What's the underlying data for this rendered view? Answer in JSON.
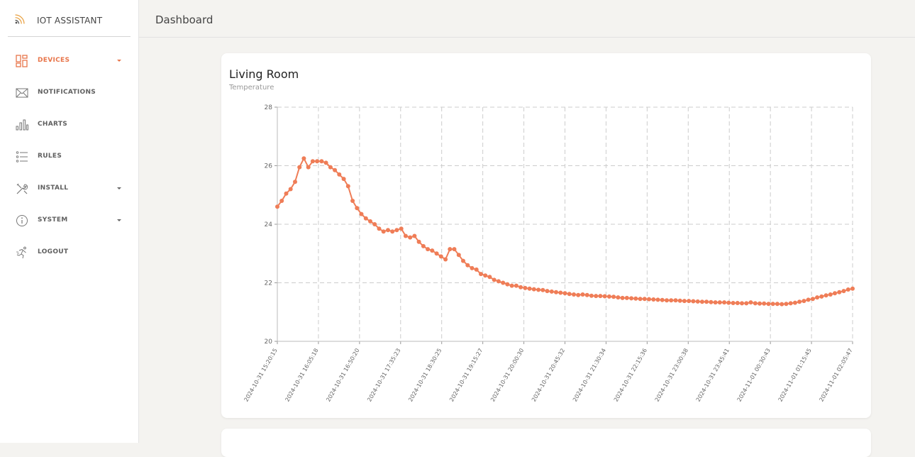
{
  "app": {
    "name": "IOT ASSISTANT"
  },
  "sidebar": {
    "items": [
      {
        "label": "DEVICES",
        "icon": "devices-icon",
        "active": true,
        "has_caret": true
      },
      {
        "label": "NOTIFICATIONS",
        "icon": "envelope-icon",
        "active": false,
        "has_caret": false
      },
      {
        "label": "CHARTS",
        "icon": "bar-chart-icon",
        "active": false,
        "has_caret": false
      },
      {
        "label": "RULES",
        "icon": "list-icon",
        "active": false,
        "has_caret": false
      },
      {
        "label": "INSTALL",
        "icon": "tools-icon",
        "active": false,
        "has_caret": true
      },
      {
        "label": "SYSTEM",
        "icon": "info-icon",
        "active": false,
        "has_caret": true
      },
      {
        "label": "LOGOUT",
        "icon": "running-person-icon",
        "active": false,
        "has_caret": false
      }
    ]
  },
  "header": {
    "title": "Dashboard"
  },
  "card": {
    "title": "Living Room",
    "subtitle": "Temperature"
  },
  "colors": {
    "accent": "#e8754a",
    "line": "#ef7d57",
    "grid": "#cccccc"
  },
  "chart_data": {
    "type": "line",
    "title": "Living Room",
    "subtitle": "Temperature",
    "xlabel": "",
    "ylabel": "",
    "ylim": [
      20,
      28
    ],
    "yticks": [
      20,
      22,
      24,
      26,
      28
    ],
    "grid": true,
    "grid_style": "dashed",
    "x_ticks": [
      "2024-10-31 15:20:15",
      "2024-10-31 16:05:18",
      "2024-10-31 16:50:20",
      "2024-10-31 17:35:23",
      "2024-10-31 18:30:25",
      "2024-10-31 19:15:27",
      "2024-10-31 20:00:30",
      "2024-10-31 20:45:32",
      "2024-10-31 21:30:34",
      "2024-10-31 22:15:36",
      "2024-10-31 23:00:38",
      "2024-10-31 23:45:41",
      "2024-11-01 00:30:43",
      "2024-11-01 01:15:45",
      "2024-11-01 02:05:47"
    ],
    "series": [
      {
        "values": [
          24.6,
          24.8,
          25.05,
          25.2,
          25.45,
          25.95,
          26.25,
          25.95,
          26.15,
          26.15,
          26.15,
          26.1,
          25.95,
          25.85,
          25.7,
          25.55,
          25.3,
          24.8,
          24.55,
          24.35,
          24.2,
          24.1,
          24.0,
          23.85,
          23.75,
          23.8,
          23.75,
          23.8,
          23.85,
          23.6,
          23.55,
          23.6,
          23.4,
          23.25,
          23.15,
          23.1,
          23.0,
          22.9,
          22.8,
          23.15,
          23.15,
          22.95,
          22.75,
          22.6,
          22.5,
          22.45,
          22.3,
          22.25,
          22.2,
          22.1,
          22.05,
          22.0,
          21.95,
          21.9,
          21.9,
          21.85,
          21.82,
          21.8,
          21.78,
          21.76,
          21.75,
          21.72,
          21.7,
          21.68,
          21.66,
          21.64,
          21.62,
          21.6,
          21.58,
          21.6,
          21.58,
          21.56,
          21.55,
          21.55,
          21.54,
          21.53,
          21.52,
          21.5,
          21.48,
          21.48,
          21.47,
          21.46,
          21.45,
          21.45,
          21.44,
          21.43,
          21.42,
          21.41,
          21.4,
          21.4,
          21.4,
          21.39,
          21.38,
          21.38,
          21.37,
          21.36,
          21.35,
          21.35,
          21.34,
          21.33,
          21.33,
          21.33,
          21.32,
          21.31,
          21.31,
          21.3,
          21.3,
          21.33,
          21.3,
          21.29,
          21.29,
          21.28,
          21.28,
          21.28,
          21.27,
          21.28,
          21.3,
          21.32,
          21.35,
          21.38,
          21.42,
          21.45,
          21.5,
          21.53,
          21.57,
          21.6,
          21.64,
          21.68,
          21.72,
          21.77,
          21.8
        ]
      }
    ]
  }
}
